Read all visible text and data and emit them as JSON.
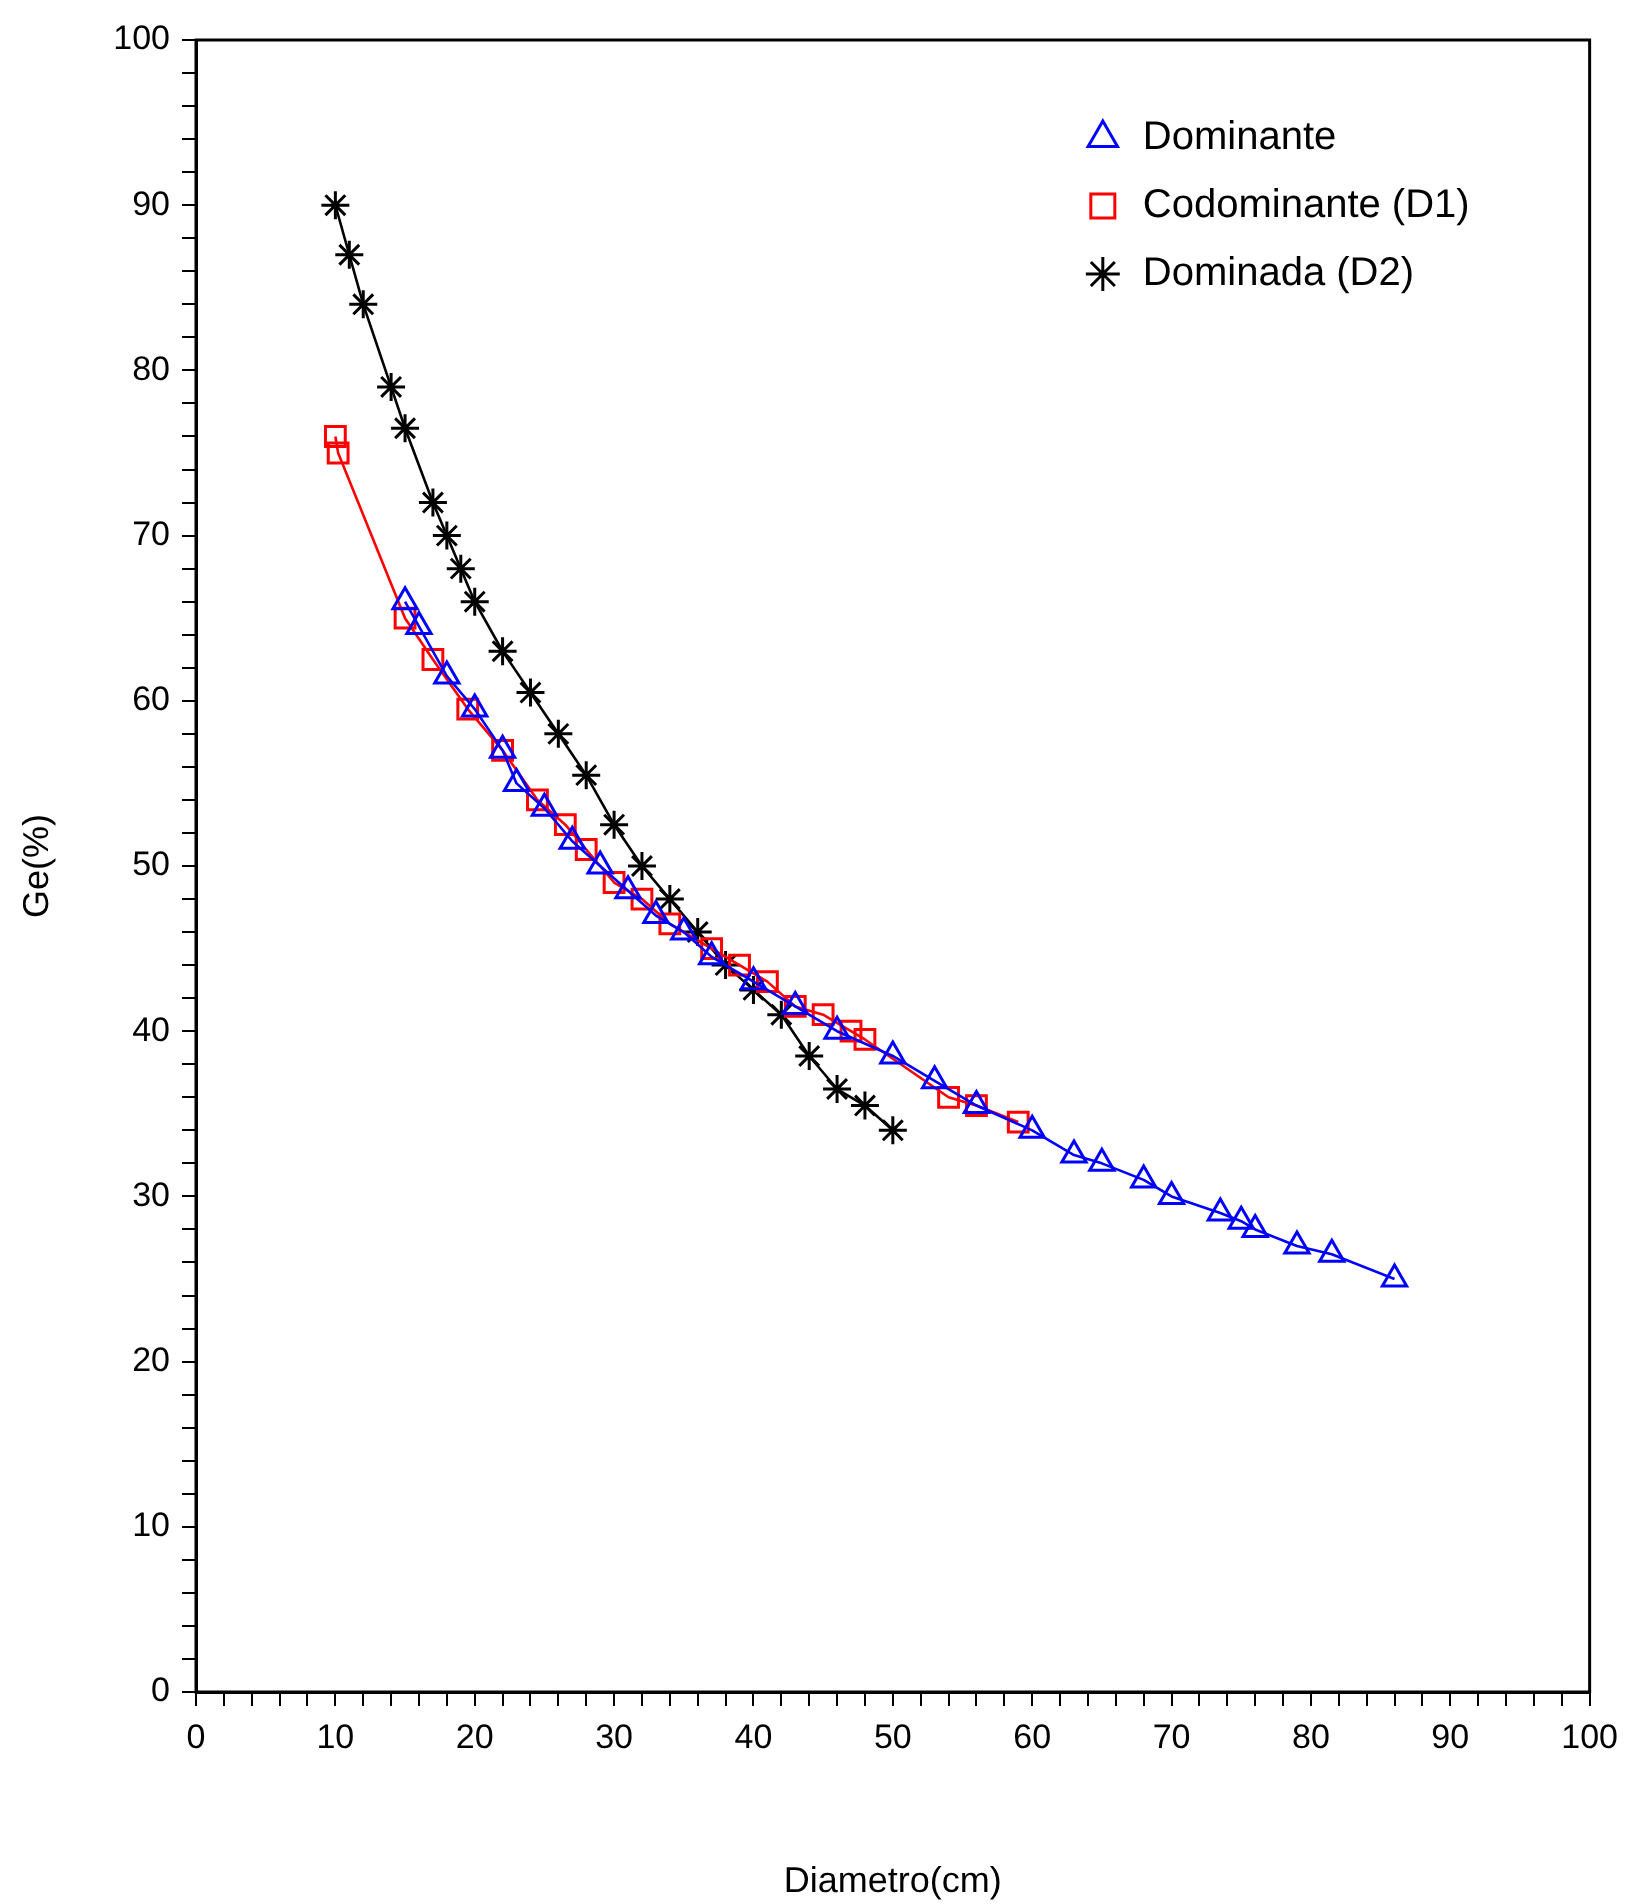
{
  "chart_data": {
    "type": "line",
    "xlabel": "Diametro(cm)",
    "ylabel": "Ge(%)",
    "legend": "top right",
    "grid": false,
    "xlim": [
      0,
      100
    ],
    "ylim": [
      0,
      100
    ],
    "xticks": [
      0,
      {
        "value": 2,
        "label": null
      },
      {
        "value": 4,
        "label": null
      },
      {
        "value": 6,
        "label": null
      },
      {
        "value": 8,
        "label": null
      },
      10,
      {
        "value": 12,
        "label": null
      },
      {
        "value": 14,
        "label": null
      },
      {
        "value": 16,
        "label": null
      },
      {
        "value": 18,
        "label": null
      },
      20,
      {
        "value": 22,
        "label": null
      },
      {
        "value": 24,
        "label": null
      },
      {
        "value": 26,
        "label": null
      },
      {
        "value": 28,
        "label": null
      },
      30,
      {
        "value": 32,
        "label": null
      },
      {
        "value": 34,
        "label": null
      },
      {
        "value": 36,
        "label": null
      },
      {
        "value": 38,
        "label": null
      },
      40,
      {
        "value": 42,
        "label": null
      },
      {
        "value": 44,
        "label": null
      },
      {
        "value": 46,
        "label": null
      },
      {
        "value": 48,
        "label": null
      },
      50,
      {
        "value": 52,
        "label": null
      },
      {
        "value": 54,
        "label": null
      },
      {
        "value": 56,
        "label": null
      },
      {
        "value": 58,
        "label": null
      },
      60,
      {
        "value": 62,
        "label": null
      },
      {
        "value": 64,
        "label": null
      },
      {
        "value": 66,
        "label": null
      },
      {
        "value": 68,
        "label": null
      },
      70,
      {
        "value": 72,
        "label": null
      },
      {
        "value": 74,
        "label": null
      },
      {
        "value": 76,
        "label": null
      },
      {
        "value": 78,
        "label": null
      },
      80,
      {
        "value": 82,
        "label": null
      },
      {
        "value": 84,
        "label": null
      },
      {
        "value": 86,
        "label": null
      },
      {
        "value": 88,
        "label": null
      },
      90,
      {
        "value": 92,
        "label": null
      },
      {
        "value": 94,
        "label": null
      },
      {
        "value": 96,
        "label": null
      },
      {
        "value": 98,
        "label": null
      },
      100
    ],
    "yticks": [
      0,
      {
        "value": 2,
        "label": null
      },
      {
        "value": 4,
        "label": null
      },
      {
        "value": 6,
        "label": null
      },
      {
        "value": 8,
        "label": null
      },
      10,
      {
        "value": 12,
        "label": null
      },
      {
        "value": 14,
        "label": null
      },
      {
        "value": 16,
        "label": null
      },
      {
        "value": 18,
        "label": null
      },
      20,
      {
        "value": 22,
        "label": null
      },
      {
        "value": 24,
        "label": null
      },
      {
        "value": 26,
        "label": null
      },
      {
        "value": 28,
        "label": null
      },
      30,
      {
        "value": 32,
        "label": null
      },
      {
        "value": 34,
        "label": null
      },
      {
        "value": 36,
        "label": null
      },
      {
        "value": 38,
        "label": null
      },
      40,
      {
        "value": 42,
        "label": null
      },
      {
        "value": 44,
        "label": null
      },
      {
        "value": 46,
        "label": null
      },
      {
        "value": 48,
        "label": null
      },
      50,
      {
        "value": 52,
        "label": null
      },
      {
        "value": 54,
        "label": null
      },
      {
        "value": 56,
        "label": null
      },
      {
        "value": 58,
        "label": null
      },
      60,
      {
        "value": 62,
        "label": null
      },
      {
        "value": 64,
        "label": null
      },
      {
        "value": 66,
        "label": null
      },
      {
        "value": 68,
        "label": null
      },
      70,
      {
        "value": 72,
        "label": null
      },
      {
        "value": 74,
        "label": null
      },
      {
        "value": 76,
        "label": null
      },
      {
        "value": 78,
        "label": null
      },
      80,
      {
        "value": 82,
        "label": null
      },
      {
        "value": 84,
        "label": null
      },
      {
        "value": 86,
        "label": null
      },
      {
        "value": 88,
        "label": null
      },
      90,
      {
        "value": 92,
        "label": null
      },
      {
        "value": 94,
        "label": null
      },
      {
        "value": 96,
        "label": null
      },
      {
        "value": 98,
        "label": null
      },
      100
    ],
    "series": [
      {
        "name": "Dominante",
        "color": "#0000ff",
        "marker": "triangle",
        "x": [
          15,
          16,
          18,
          20,
          22,
          23,
          25,
          27,
          29,
          31,
          33,
          35,
          37,
          40,
          43,
          46,
          50,
          53,
          56,
          60,
          63,
          65,
          68,
          70,
          73.5,
          75,
          76,
          79,
          81.5,
          86
        ],
        "values": [
          66,
          64.5,
          61.5,
          59.5,
          57,
          55,
          53.5,
          51.5,
          50,
          48.5,
          47,
          46,
          44.5,
          43,
          41.5,
          40,
          38.5,
          37,
          35.5,
          34,
          32.5,
          32,
          31,
          30,
          29,
          28.5,
          28,
          27,
          26.5,
          25
        ]
      },
      {
        "name": "Codominante (D1)",
        "color": "#ff0000",
        "marker": "square",
        "x": [
          10,
          10.2,
          15,
          17,
          19.5,
          22,
          24.5,
          26.5,
          28,
          30,
          32,
          34,
          37,
          39,
          41,
          43,
          45,
          47,
          48,
          54,
          56,
          59
        ],
        "values": [
          76,
          75,
          65,
          62.5,
          59.5,
          57,
          54,
          52.5,
          51,
          49,
          48,
          46.5,
          45,
          44,
          43,
          41.5,
          41,
          40,
          39.5,
          36,
          35.5,
          34.5
        ]
      },
      {
        "name": "Dominada (D2)",
        "color": "#000000",
        "marker": "cross",
        "x": [
          10,
          11,
          12,
          14,
          15,
          17,
          18,
          19,
          20,
          22,
          24,
          26,
          28,
          30,
          32,
          34,
          36,
          38,
          40,
          42,
          44,
          46,
          48,
          50
        ],
        "values": [
          90,
          87,
          84,
          79,
          76.5,
          72,
          70,
          68,
          66,
          63,
          60.5,
          58,
          55.5,
          52.5,
          50,
          48,
          46,
          44,
          42.5,
          41,
          38.5,
          36.5,
          35.5,
          34
        ]
      }
    ]
  }
}
